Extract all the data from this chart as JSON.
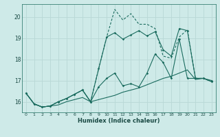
{
  "xlabel": "Humidex (Indice chaleur)",
  "bg_color": "#ceeae8",
  "grid_color": "#b8d8d6",
  "line_color": "#1a6b5e",
  "xlim": [
    -0.5,
    23.5
  ],
  "ylim": [
    15.5,
    20.6
  ],
  "yticks": [
    16,
    17,
    18,
    19,
    20
  ],
  "xticks": [
    0,
    1,
    2,
    3,
    4,
    5,
    6,
    7,
    8,
    9,
    10,
    11,
    12,
    13,
    14,
    15,
    16,
    17,
    18,
    19,
    20,
    21,
    22,
    23
  ],
  "line1_x": [
    0,
    1,
    2,
    3,
    4,
    5,
    6,
    7,
    8,
    9,
    10,
    11,
    12,
    13,
    14,
    15,
    16,
    17,
    18,
    19,
    20,
    21,
    22,
    23
  ],
  "line1_y": [
    16.4,
    15.9,
    15.75,
    15.8,
    15.85,
    16.0,
    16.1,
    16.2,
    16.0,
    16.1,
    16.2,
    16.3,
    16.45,
    16.55,
    16.65,
    16.8,
    16.95,
    17.1,
    17.2,
    17.35,
    17.5,
    17.05,
    17.1,
    16.95
  ],
  "line2_x": [
    0,
    1,
    2,
    3,
    4,
    5,
    6,
    7,
    8,
    9,
    10,
    11,
    12,
    13,
    14,
    15,
    16,
    17,
    18,
    19,
    20,
    21,
    22,
    23
  ],
  "line2_y": [
    16.4,
    15.9,
    15.75,
    15.8,
    16.0,
    16.15,
    16.35,
    16.55,
    16.0,
    16.7,
    17.1,
    17.35,
    16.75,
    16.85,
    16.7,
    17.35,
    18.25,
    17.85,
    17.1,
    18.95,
    17.1,
    17.1,
    17.1,
    17.0
  ],
  "line3_x": [
    0,
    1,
    2,
    3,
    4,
    5,
    6,
    7,
    8,
    9,
    10,
    11,
    12,
    13,
    14,
    15,
    16,
    17,
    18,
    19,
    20,
    21,
    22,
    23
  ],
  "line3_y": [
    16.4,
    15.9,
    15.75,
    15.8,
    16.0,
    16.15,
    16.35,
    16.55,
    16.0,
    17.55,
    19.05,
    19.25,
    18.95,
    19.15,
    19.35,
    19.1,
    19.3,
    18.45,
    18.15,
    19.45,
    19.35,
    17.1,
    17.1,
    16.95
  ],
  "line4_x": [
    0,
    1,
    2,
    3,
    4,
    5,
    6,
    7,
    8,
    9,
    10,
    11,
    12,
    13,
    14,
    15,
    16,
    17,
    18,
    19,
    20,
    21,
    22,
    23
  ],
  "line4_y": [
    16.4,
    15.9,
    15.75,
    15.8,
    16.0,
    16.15,
    16.35,
    16.55,
    16.0,
    17.55,
    19.05,
    20.35,
    19.85,
    20.15,
    19.65,
    19.65,
    19.45,
    18.15,
    18.05,
    19.05,
    19.4,
    17.1,
    17.1,
    16.95
  ]
}
